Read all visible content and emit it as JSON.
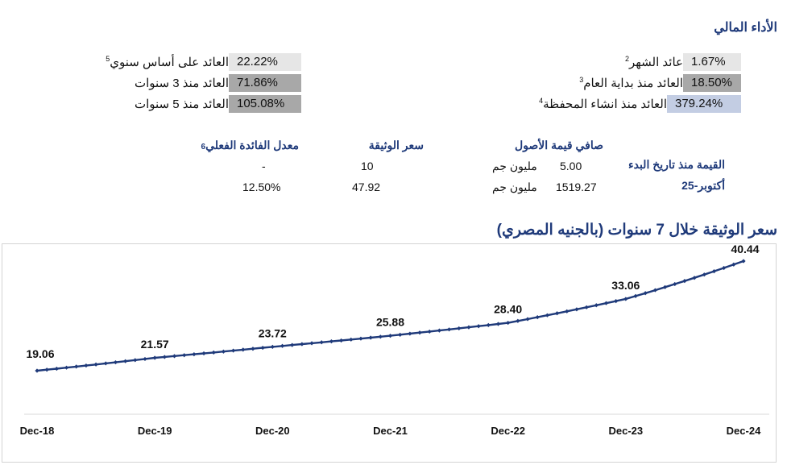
{
  "header": {
    "title": "الأداء المالي"
  },
  "performance": {
    "right": [
      {
        "label": "عائد الشهر",
        "sup": "2",
        "value": "1.67%",
        "shade": "bg-light"
      },
      {
        "label": "العائد منذ بداية العام",
        "sup": "3",
        "value": "18.50%",
        "shade": "bg-dark"
      },
      {
        "label": "العائد منذ انشاء المحفظة",
        "sup": "4",
        "value": "379.24%",
        "shade": "bg-blue"
      }
    ],
    "left": [
      {
        "label": "العائد على أساس سنوي",
        "sup": "5",
        "value": "22.22%",
        "shade": "bg-light"
      },
      {
        "label": "العائد منذ 3 سنوات",
        "sup": "",
        "value": "71.86%",
        "shade": "bg-dark"
      },
      {
        "label": "العائد منذ 5 سنوات",
        "sup": "",
        "value": "105.08%",
        "shade": "bg-dark"
      }
    ]
  },
  "facts": {
    "start_value_label": "القيمة منذ تاريخ البدء",
    "period_label": "أكتوبر-25",
    "nav_header": "صافي قيمة الأصول",
    "nav_start_value": "5.00",
    "nav_start_unit": "مليون جم",
    "nav_current_value": "1519.27",
    "nav_current_unit": "مليون جم",
    "price_header": "سعر الوثيقة",
    "price_start": "10",
    "price_current": "47.92",
    "rate_header": "معدل الفائدة الفعلي",
    "rate_header_sup": "6",
    "rate_start": "-",
    "rate_current": "12.50%"
  },
  "chart_data": {
    "type": "line",
    "title": "سعر الوثيقة خلال 7 سنوات (بالجنيه المصري)",
    "xlabel": "",
    "ylabel": "",
    "x_ticks": [
      "Dec-18",
      "Dec-19",
      "Dec-20",
      "Dec-21",
      "Dec-22",
      "Dec-23",
      "Dec-24"
    ],
    "labeled_points": [
      {
        "x": "Dec-18",
        "y": 19.06,
        "label": "19.06"
      },
      {
        "x": "Dec-19",
        "y": 21.57,
        "label": "21.57"
      },
      {
        "x": "Dec-20",
        "y": 23.72,
        "label": "23.72"
      },
      {
        "x": "Dec-21",
        "y": 25.88,
        "label": "25.88"
      },
      {
        "x": "Dec-22",
        "y": 28.4,
        "label": "28.40"
      },
      {
        "x": "Dec-23",
        "y": 33.06,
        "label": "33.06"
      },
      {
        "x": "Dec-24",
        "y": 40.44,
        "label": "40.44"
      }
    ],
    "series": [
      {
        "values": [
          19.06,
          21.57,
          23.72,
          25.88,
          28.4,
          33.06,
          40.44
        ],
        "color": "#1f3a7a",
        "marker": "diamond"
      }
    ],
    "points_per_year": 12,
    "grid": false,
    "legend": "none"
  }
}
